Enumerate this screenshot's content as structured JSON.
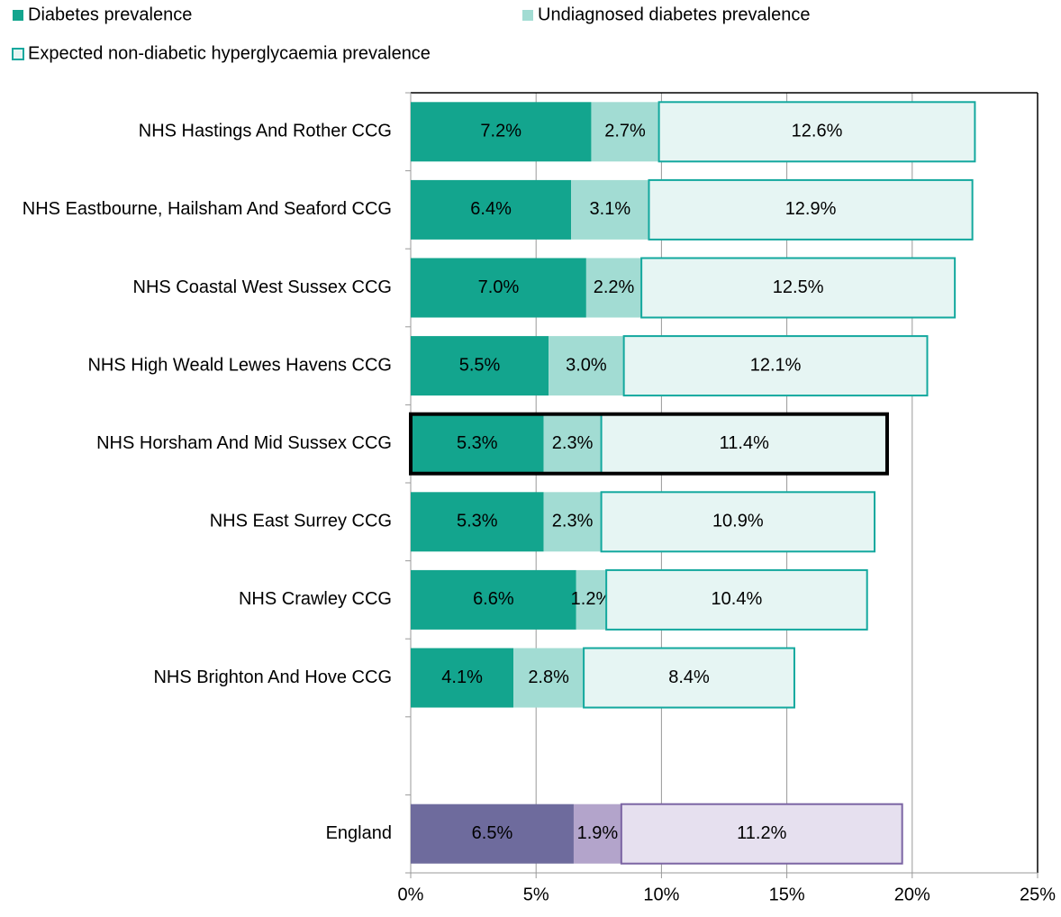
{
  "chart_data": {
    "type": "stacked-bar-horizontal",
    "categories": [
      "NHS Hastings And Rother CCG",
      "NHS Eastbourne, Hailsham And Seaford CCG",
      "NHS Coastal West Sussex CCG",
      "NHS High Weald Lewes Havens CCG",
      "NHS Horsham And Mid Sussex CCG",
      "NHS East Surrey CCG",
      "NHS Crawley CCG",
      "NHS Brighton And Hove CCG",
      null,
      "England"
    ],
    "series": [
      {
        "name": "Diabetes prevalence",
        "color": "#13a58e",
        "colors": [
          "#13a58e",
          "#13a58e",
          "#13a58e",
          "#13a58e",
          "#13a58e",
          "#13a58e",
          "#13a58e",
          "#13a58e",
          null,
          "#6e6b9d"
        ],
        "values": [
          7.2,
          6.4,
          7.0,
          5.5,
          5.3,
          5.3,
          6.6,
          4.1,
          null,
          6.5
        ],
        "value_labels": [
          "7.2%",
          "6.4%",
          "7.0%",
          "5.5%",
          "5.3%",
          "5.3%",
          "6.6%",
          "4.1%",
          null,
          "6.5%"
        ]
      },
      {
        "name": "Undiagnosed diabetes prevalence",
        "color": "#a2dcd3",
        "colors": [
          "#a2dcd3",
          "#a2dcd3",
          "#a2dcd3",
          "#a2dcd3",
          "#a2dcd3",
          "#a2dcd3",
          "#a2dcd3",
          "#a2dcd3",
          null,
          "#b3a4cb"
        ],
        "values": [
          2.7,
          3.1,
          2.2,
          3.0,
          2.3,
          2.3,
          1.2,
          2.8,
          null,
          1.9
        ],
        "value_labels": [
          "2.7%",
          "3.1%",
          "2.2%",
          "3.0%",
          "2.3%",
          "2.3%",
          "1.2%",
          "2.8%",
          null,
          "1.9%"
        ]
      },
      {
        "name": "Expected non-diabetic hyperglycaemia prevalence",
        "color": "#e6f5f3",
        "edge_color": "#13a89e",
        "colors": [
          "#e6f5f3",
          "#e6f5f3",
          "#e6f5f3",
          "#e6f5f3",
          "#e6f5f3",
          "#e6f5f3",
          "#e6f5f3",
          "#e6f5f3",
          null,
          "#e6e0ef"
        ],
        "edge_colors": [
          "#13a89e",
          "#13a89e",
          "#13a89e",
          "#13a89e",
          "#13a89e",
          "#13a89e",
          "#13a89e",
          "#13a89e",
          null,
          "#7b64a3"
        ],
        "values": [
          12.6,
          12.9,
          12.5,
          12.1,
          11.4,
          10.9,
          10.4,
          8.4,
          null,
          11.2
        ],
        "value_labels": [
          "12.6%",
          "12.9%",
          "12.5%",
          "12.1%",
          "11.4%",
          "10.9%",
          "10.4%",
          "8.4%",
          null,
          "11.2%"
        ]
      }
    ],
    "highlight_index": 4,
    "xlim": [
      0,
      25
    ],
    "xticks": [
      {
        "value": 0,
        "label": "0%"
      },
      {
        "value": 5,
        "label": "5%"
      },
      {
        "value": 10,
        "label": "10%"
      },
      {
        "value": 15,
        "label": "15%"
      },
      {
        "value": 20,
        "label": "20%"
      },
      {
        "value": 25,
        "label": "25%"
      }
    ],
    "grid": true,
    "legend": "top"
  }
}
